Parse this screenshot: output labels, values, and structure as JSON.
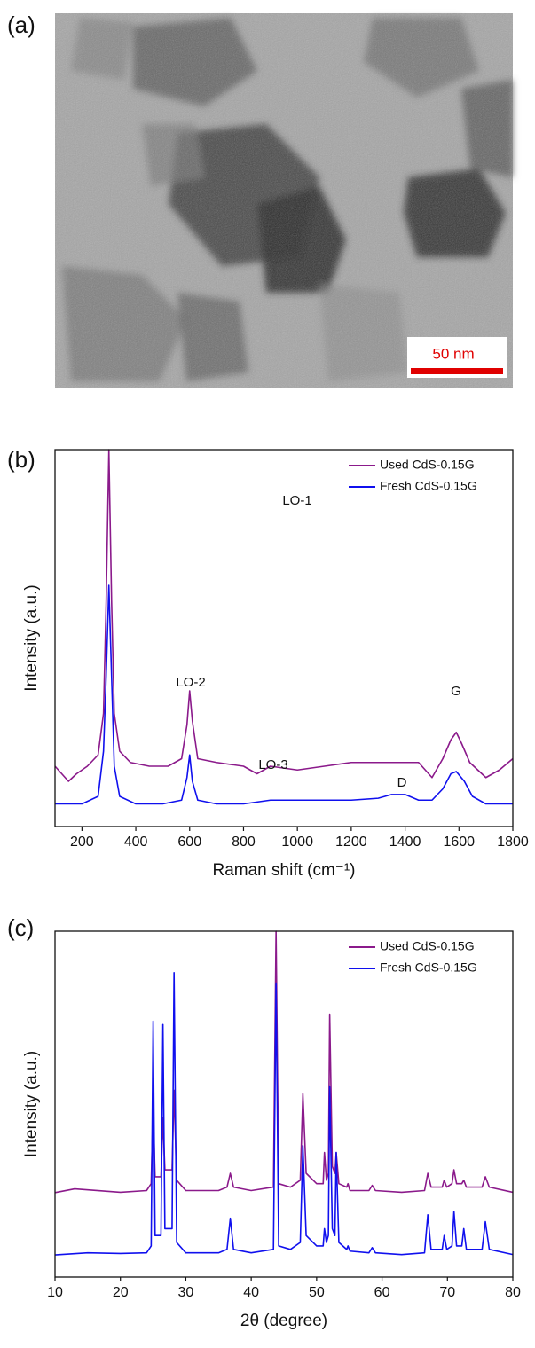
{
  "chart_data": [
    {
      "type": "image",
      "title": "(a)",
      "scale_bar": "50 nm"
    },
    {
      "type": "line",
      "title": "(b)",
      "xlabel": "Raman shift (cm⁻¹)",
      "ylabel": "Intensity (a.u.)",
      "xlim": [
        100,
        1800
      ],
      "xticks": [
        200,
        400,
        600,
        800,
        1000,
        1200,
        1400,
        1600,
        1800
      ],
      "ylim": [
        0,
        100
      ],
      "legend": "upper right",
      "annotations": [
        "LO-1",
        "LO-2",
        "LO-3",
        "G",
        "D"
      ],
      "series": [
        {
          "name": "Used CdS-0.15G",
          "color": "#8b1a8b",
          "x": [
            100,
            150,
            180,
            220,
            260,
            280,
            290,
            300,
            310,
            320,
            340,
            380,
            450,
            520,
            570,
            590,
            600,
            610,
            630,
            700,
            800,
            850,
            900,
            1000,
            1100,
            1200,
            1300,
            1400,
            1450,
            1500,
            1540,
            1570,
            1590,
            1610,
            1640,
            1700,
            1750,
            1800
          ],
          "values": [
            16,
            12,
            14,
            16,
            19,
            30,
            60,
            100,
            60,
            30,
            20,
            17,
            16,
            16,
            18,
            27,
            36,
            28,
            18,
            17,
            16,
            14,
            16,
            15,
            16,
            17,
            17,
            17,
            17,
            13,
            18,
            23,
            25,
            22,
            17,
            13,
            15,
            18
          ]
        },
        {
          "name": "Fresh CdS-0.15G",
          "color": "#1010ee",
          "x": [
            100,
            200,
            260,
            280,
            290,
            300,
            310,
            320,
            340,
            400,
            500,
            570,
            590,
            600,
            610,
            630,
            700,
            800,
            900,
            1000,
            1100,
            1200,
            1300,
            1350,
            1400,
            1450,
            1500,
            1540,
            1570,
            1590,
            1620,
            1650,
            1700,
            1800
          ],
          "values": [
            6,
            6,
            8,
            20,
            40,
            64,
            40,
            16,
            8,
            6,
            6,
            7,
            13,
            19,
            12,
            7,
            6,
            6,
            7,
            7,
            7,
            7,
            7.5,
            8.5,
            8.5,
            7,
            7,
            10,
            14,
            14.6,
            12,
            8,
            6,
            6
          ]
        }
      ]
    },
    {
      "type": "line",
      "title": "(c)",
      "xlabel": "2θ (degree)",
      "ylabel": "Intensity (a.u.)",
      "xlim": [
        10,
        80
      ],
      "xticks": [
        10,
        20,
        30,
        40,
        50,
        60,
        70,
        80
      ],
      "ylim": [
        0,
        100
      ],
      "legend": "upper right",
      "series": [
        {
          "name": "Used CdS-0.15G",
          "color": "#8b1a8b",
          "x": [
            10,
            13,
            20,
            24,
            24.7,
            25,
            25.3,
            26.2,
            26.5,
            26.8,
            27.9,
            28.2,
            28.6,
            30,
            35,
            36.3,
            36.8,
            37.3,
            40,
            43.4,
            43.8,
            44.2,
            46,
            47.5,
            47.9,
            48.4,
            50,
            51,
            51.2,
            51.5,
            51.8,
            52,
            52.4,
            52.8,
            53,
            53.4,
            54.6,
            54.8,
            55.1,
            58,
            58.5,
            59,
            63,
            66.5,
            67,
            67.5,
            69.2,
            69.5,
            69.9,
            70.7,
            71,
            71.4,
            72.2,
            72.5,
            72.9,
            75.3,
            75.8,
            76.4,
            80
          ],
          "values": [
            24.4,
            25.5,
            24.5,
            25,
            27,
            49,
            29,
            29,
            46,
            31,
            31,
            54,
            28,
            25,
            25,
            26,
            30,
            26,
            25,
            26,
            100,
            27,
            26,
            28,
            53,
            30,
            27,
            27,
            36,
            28,
            30,
            76,
            32,
            30,
            36,
            27,
            26,
            27,
            25,
            25,
            26.5,
            25,
            24.5,
            25,
            30,
            26,
            26,
            28,
            26,
            27,
            31,
            27,
            27,
            28,
            26,
            26,
            29,
            26,
            24.5
          ]
        },
        {
          "name": "Fresh CdS-0.15G",
          "color": "#1010ee",
          "x": [
            10,
            15,
            20,
            24,
            24.7,
            25,
            25.3,
            26.2,
            26.5,
            26.8,
            27.9,
            28.2,
            28.6,
            30,
            35,
            36.3,
            36.8,
            37.3,
            40,
            43.4,
            43.8,
            44.2,
            46,
            47.5,
            47.9,
            48.4,
            50,
            51,
            51.2,
            51.5,
            51.8,
            52,
            52.4,
            52.8,
            53,
            53.4,
            54.6,
            54.8,
            55.1,
            58,
            58.5,
            59,
            63,
            66.5,
            67,
            67.5,
            69.2,
            69.5,
            69.9,
            70.7,
            71,
            71.4,
            72.2,
            72.5,
            72.9,
            75.3,
            75.8,
            76.4,
            80
          ],
          "values": [
            6.4,
            7,
            6.8,
            7,
            9,
            74,
            12,
            12,
            73,
            14,
            14,
            88,
            10,
            7,
            7,
            8,
            17,
            8,
            7,
            8,
            85,
            9,
            8,
            10,
            38,
            12,
            9,
            9,
            14,
            10,
            12,
            55,
            14,
            12,
            36,
            10,
            8,
            9,
            7.5,
            7,
            8.5,
            7,
            6.5,
            7,
            18,
            8,
            8,
            12,
            8,
            9,
            19,
            9,
            9,
            14,
            8,
            8,
            16,
            8,
            6.5
          ]
        }
      ]
    }
  ]
}
